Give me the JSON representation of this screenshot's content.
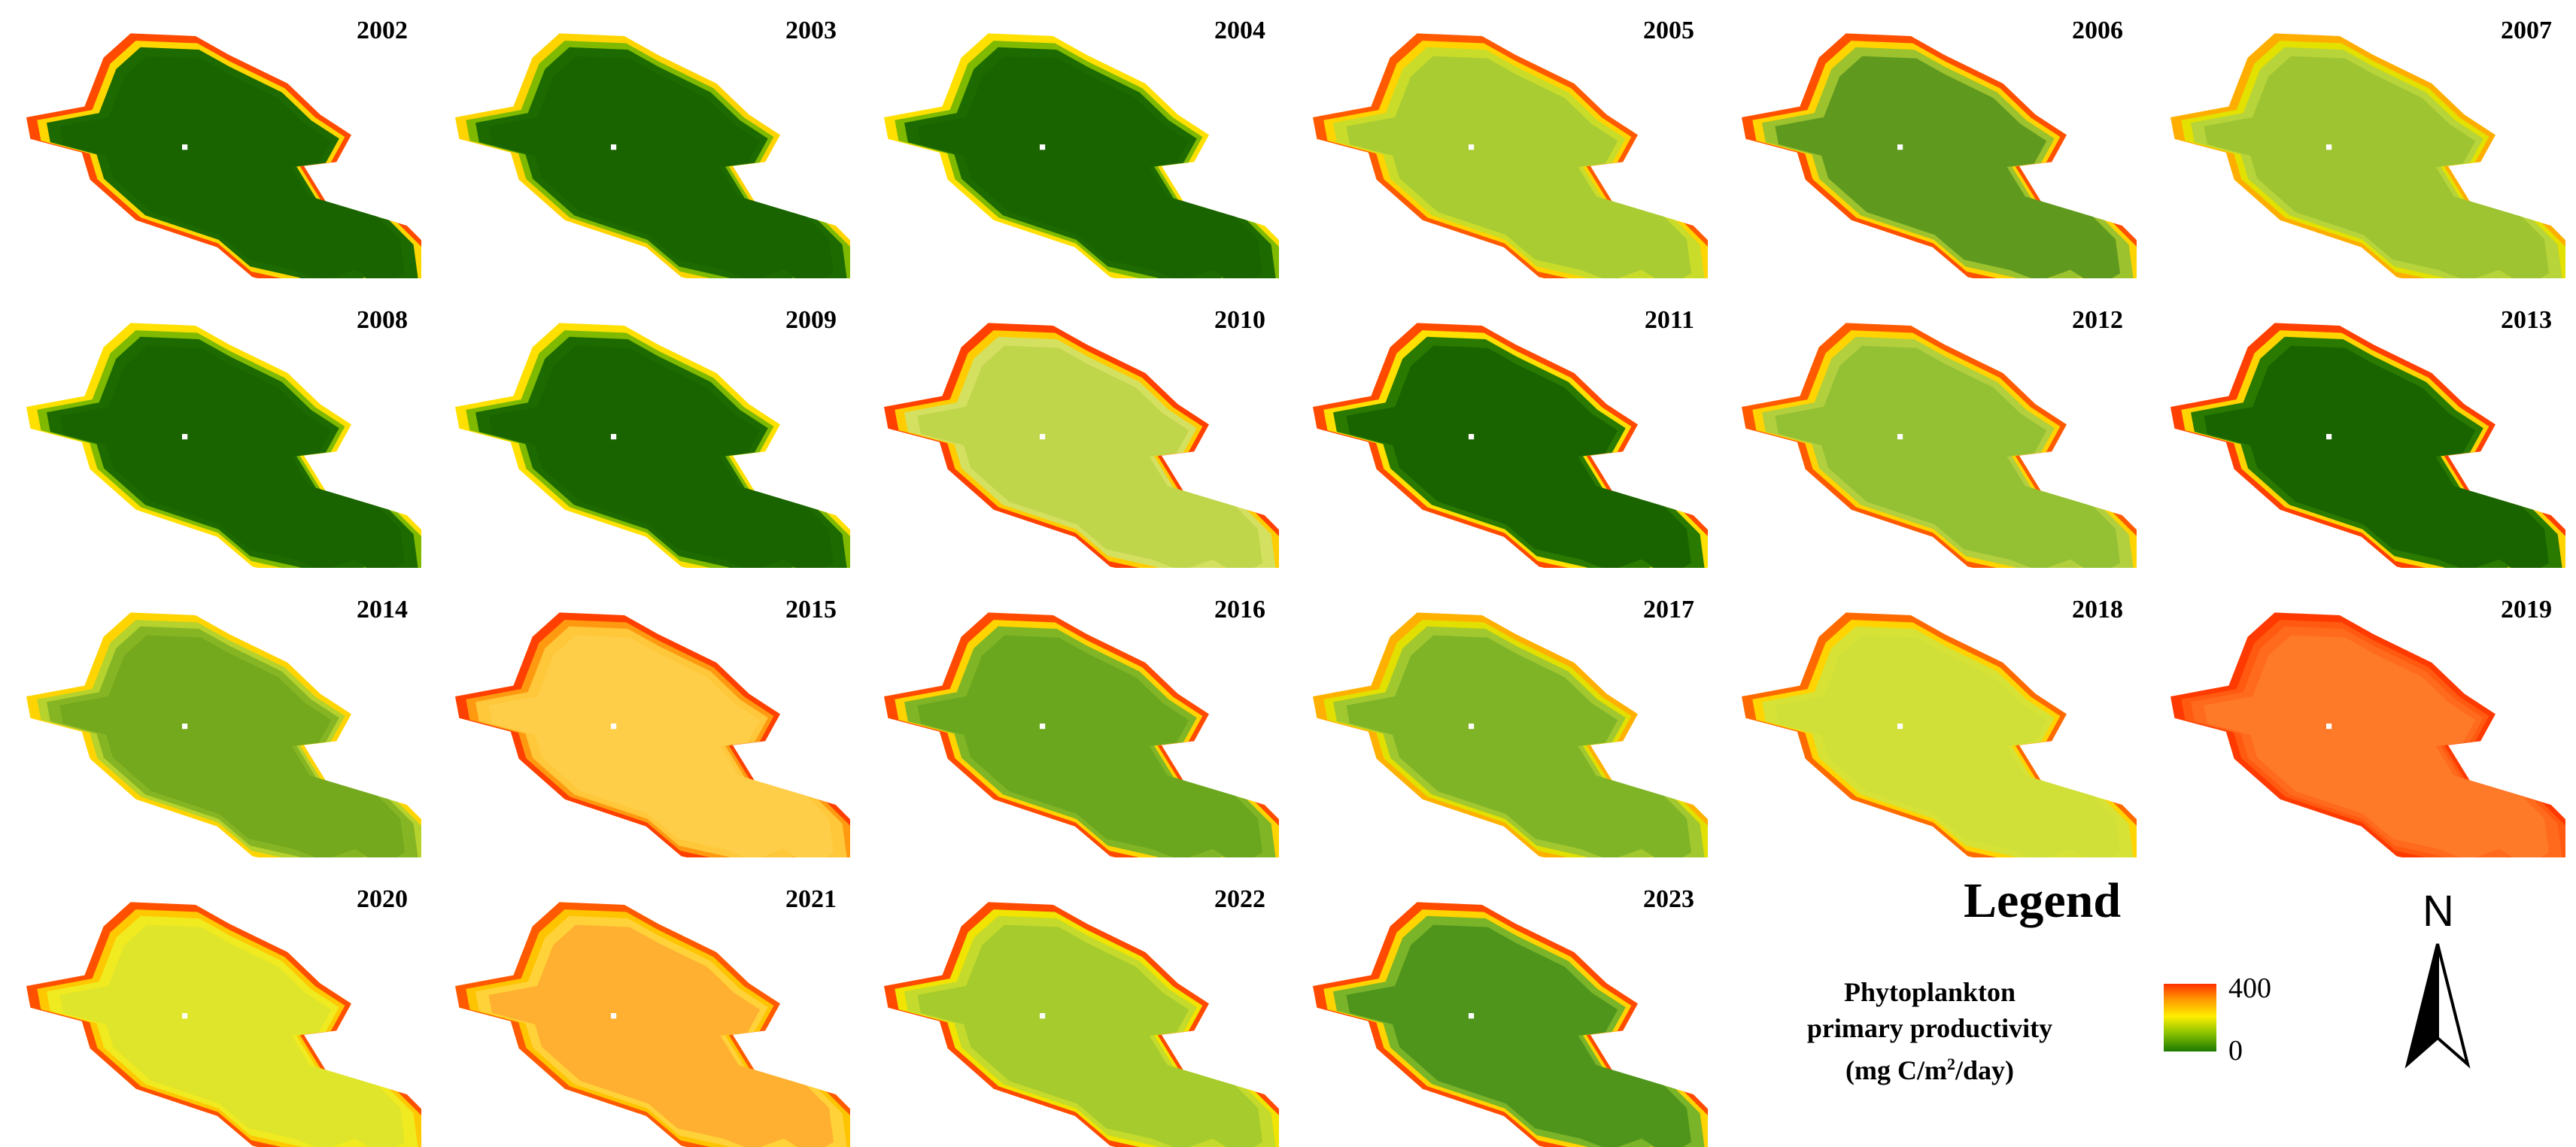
{
  "maps": [
    {
      "year": "2002",
      "outer": "#ff4a00",
      "mid": "#ffd700",
      "inner": "#1d6b00",
      "core": "#1a6400"
    },
    {
      "year": "2003",
      "outer": "#ffd400",
      "mid": "#7fba00",
      "inner": "#1d6b00",
      "core": "#1a6400"
    },
    {
      "year": "2004",
      "outer": "#ffe000",
      "mid": "#7fba00",
      "inner": "#1d6b00",
      "core": "#1a6400"
    },
    {
      "year": "2005",
      "outer": "#ff5a00",
      "mid": "#ffd400",
      "inner": "#c9dc2a",
      "core": "#a9cc33"
    },
    {
      "year": "2006",
      "outer": "#ff5000",
      "mid": "#ffd400",
      "inner": "#9cc22e",
      "core": "#5f9a1e"
    },
    {
      "year": "2007",
      "outer": "#ffae00",
      "mid": "#e3e100",
      "inner": "#b7d43a",
      "core": "#9fc431"
    },
    {
      "year": "2008",
      "outer": "#ffe000",
      "mid": "#7fba00",
      "inner": "#1d6b00",
      "core": "#1a6400"
    },
    {
      "year": "2009",
      "outer": "#ffe000",
      "mid": "#7fba00",
      "inner": "#1d6b00",
      "core": "#1a6400"
    },
    {
      "year": "2010",
      "outer": "#ff4000",
      "mid": "#ffcc00",
      "inner": "#d4e060",
      "core": "#bfd54a"
    },
    {
      "year": "2011",
      "outer": "#ff4a00",
      "mid": "#ffe000",
      "inner": "#2a7a00",
      "core": "#1a6400"
    },
    {
      "year": "2012",
      "outer": "#ff5a00",
      "mid": "#ffd400",
      "inner": "#b2cf3e",
      "core": "#94c033"
    },
    {
      "year": "2013",
      "outer": "#ff4000",
      "mid": "#ffd400",
      "inner": "#2a7a00",
      "core": "#1a6400"
    },
    {
      "year": "2014",
      "outer": "#ffd400",
      "mid": "#b6d22d",
      "inner": "#86b524",
      "core": "#74a81d"
    },
    {
      "year": "2015",
      "outer": "#ff4000",
      "mid": "#ff9a10",
      "inner": "#ffc73a",
      "core": "#ffce48"
    },
    {
      "year": "2016",
      "outer": "#ff4a00",
      "mid": "#ffd400",
      "inner": "#80b526",
      "core": "#6aa71e"
    },
    {
      "year": "2017",
      "outer": "#ffb000",
      "mid": "#e2e000",
      "inner": "#a2c830",
      "core": "#7fb427"
    },
    {
      "year": "2018",
      "outer": "#ff6a00",
      "mid": "#ffd400",
      "inner": "#d6e236",
      "core": "#d0e038"
    },
    {
      "year": "2019",
      "outer": "#ff3a00",
      "mid": "#ff5a10",
      "inner": "#ff6a1c",
      "core": "#ff7a28"
    },
    {
      "year": "2020",
      "outer": "#ff5000",
      "mid": "#ffc800",
      "inner": "#f0ea20",
      "core": "#dfe52a"
    },
    {
      "year": "2021",
      "outer": "#ff5a00",
      "mid": "#ffc400",
      "inner": "#ffd23a",
      "core": "#ffb030"
    },
    {
      "year": "2022",
      "outer": "#ff4a00",
      "mid": "#f0e400",
      "inner": "#c4da2c",
      "core": "#a6cb2c"
    },
    {
      "year": "2023",
      "outer": "#ff4a00",
      "mid": "#ffd400",
      "inner": "#7ab428",
      "core": "#4f951c"
    }
  ],
  "legend": {
    "title": "Legend",
    "label_line1": "Phytoplankton",
    "label_line2": "primary  productivity",
    "label_line3": "(mg C/m",
    "label_sup": "2",
    "label_line3_end": "/day)",
    "max_label": "400",
    "min_label": "0",
    "gradient_colors": [
      "#ff3000",
      "#ff8c00",
      "#ffee00",
      "#8fc400",
      "#1b7a00"
    ]
  },
  "north_arrow": {
    "label": "N"
  }
}
